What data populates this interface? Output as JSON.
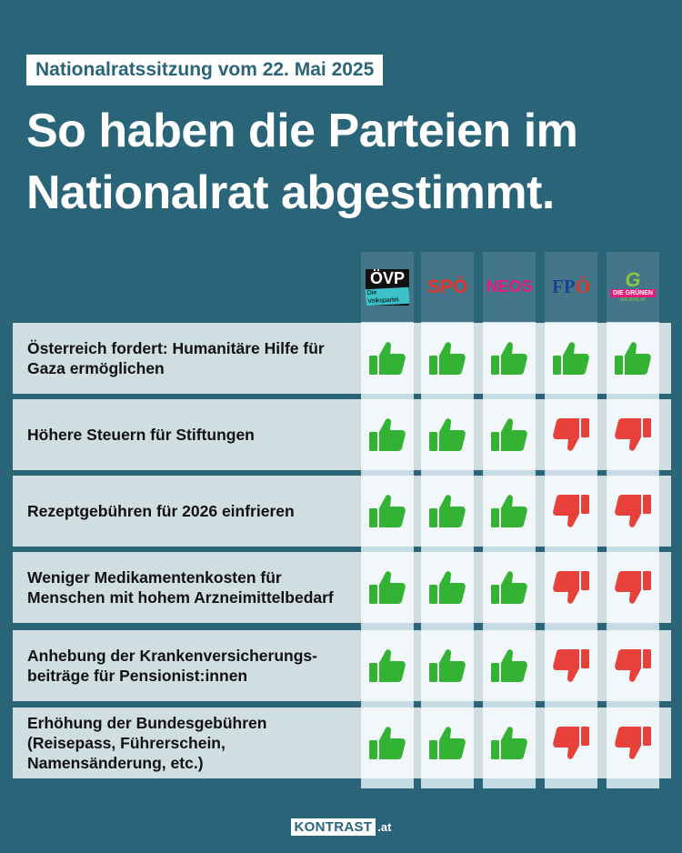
{
  "subtitle": "Nationalratssitzung vom 22. Mai 2025",
  "title_line1": "So haben die Parteien im",
  "title_line2": "Nationalrat abgestimmt.",
  "parties": [
    {
      "name": "ÖVP",
      "tagline": "Die Volkspartei."
    },
    {
      "name": "SPÖ"
    },
    {
      "name": "NEOS"
    },
    {
      "name": "FPÖ"
    },
    {
      "name": "DIE GRÜNEN",
      "domain": "GRUENE.AT"
    }
  ],
  "motions": [
    {
      "label": "Österreich fordert: Humanitäre Hilfe für Gaza ermöglichen",
      "votes": [
        "up",
        "up",
        "up",
        "up",
        "up"
      ]
    },
    {
      "label": "Höhere Steuern für Stiftungen",
      "votes": [
        "up",
        "up",
        "up",
        "down",
        "down"
      ]
    },
    {
      "label": "Rezeptgebühren für 2026 einfrieren",
      "votes": [
        "up",
        "up",
        "up",
        "down",
        "down"
      ]
    },
    {
      "label": "Weniger Medikamentenkosten für Menschen mit hohem Arzneimittelbedarf",
      "votes": [
        "up",
        "up",
        "up",
        "down",
        "down"
      ]
    },
    {
      "label": "Anhebung der Krankenversicherungs- beiträge für Pensionist:innen",
      "votes": [
        "up",
        "up",
        "up",
        "down",
        "down"
      ]
    },
    {
      "label": "Erhöhung der Bundesgebühren (Reisepass, Führerschein, Namensänderung, etc.)",
      "votes": [
        "up",
        "up",
        "up",
        "down",
        "down"
      ]
    }
  ],
  "vote_icons": {
    "up": "thumbs-up-icon",
    "down": "thumbs-down-icon"
  },
  "colors": {
    "background": "#2a6479",
    "up": "#34b233",
    "down": "#e8403a"
  },
  "footer": {
    "brand": "KONTRAST",
    "tld": ".at"
  }
}
